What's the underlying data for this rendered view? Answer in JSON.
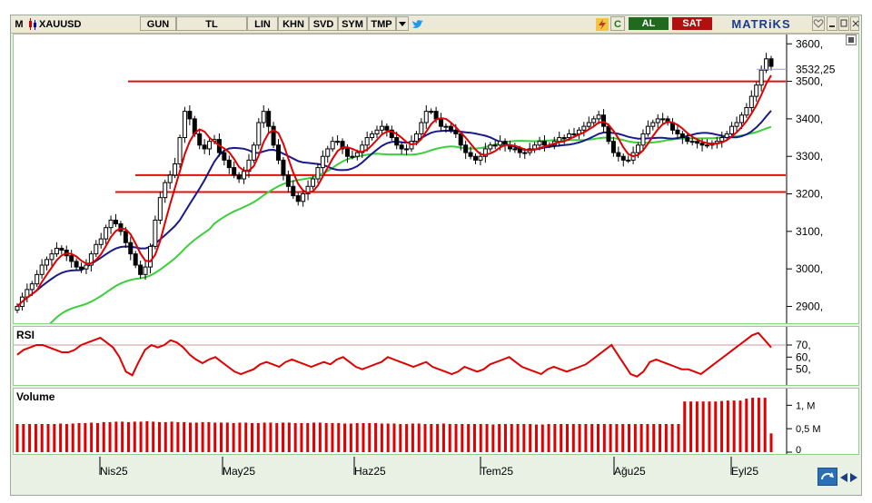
{
  "toolbar": {
    "menu_letter": "M",
    "symbol": "XAUUSD",
    "buttons": [
      "GUN",
      "TL",
      "LIN",
      "KHN",
      "SVD",
      "SYM",
      "TMP"
    ],
    "buy_label": "AL",
    "sell_label": "SAT",
    "brand": "MATRiKS",
    "c_label": "C"
  },
  "colors": {
    "candle": "#000000",
    "price_ma": "#e00000",
    "mid_ma": "#1a1a8c",
    "long_ma": "#3ccf3c",
    "level_line": "#e01010",
    "rsi_line": "#e00000",
    "volume_bar": "#e00000",
    "buy_bg": "#1e6b1e",
    "sell_bg": "#b01010"
  },
  "price_axis": {
    "ticks": [
      "3600,",
      "3500,",
      "3400,",
      "3300,",
      "3200,",
      "3100,",
      "3000,",
      "2900,"
    ],
    "last_price": "3532,25"
  },
  "rsi_panel": {
    "label": "RSI",
    "ticks": [
      "70,",
      "60,",
      "50,"
    ]
  },
  "volume_panel": {
    "label": "Volume",
    "ticks": [
      "1, M",
      "0,5 M",
      "0"
    ]
  },
  "time_axis": {
    "labels": [
      "Nis25",
      "May25",
      "Haz25",
      "Tem25",
      "Ağu25",
      "Eyl25"
    ]
  },
  "chart_data": {
    "type": "candlestick",
    "symbol": "XAUUSD",
    "period": "GUN",
    "ylim": [
      2860,
      3620
    ],
    "horizontal_levels": [
      3500,
      3250,
      3205
    ],
    "last_price": 3532.25,
    "closes": [
      2900,
      2925,
      2945,
      2960,
      2985,
      3010,
      3025,
      3040,
      3055,
      3050,
      3035,
      3020,
      3005,
      3000,
      3010,
      3040,
      3065,
      3080,
      3110,
      3130,
      3120,
      3100,
      3070,
      3040,
      3010,
      2985,
      3005,
      3060,
      3130,
      3190,
      3230,
      3250,
      3280,
      3350,
      3420,
      3400,
      3360,
      3330,
      3320,
      3340,
      3345,
      3310,
      3290,
      3270,
      3250,
      3240,
      3260,
      3290,
      3330,
      3390,
      3420,
      3380,
      3330,
      3290,
      3250,
      3220,
      3195,
      3180,
      3200,
      3220,
      3240,
      3270,
      3300,
      3320,
      3340,
      3340,
      3320,
      3300,
      3300,
      3310,
      3330,
      3350,
      3360,
      3370,
      3380,
      3370,
      3350,
      3330,
      3320,
      3320,
      3340,
      3360,
      3390,
      3420,
      3420,
      3400,
      3380,
      3380,
      3370,
      3360,
      3330,
      3310,
      3300,
      3290,
      3300,
      3320,
      3330,
      3330,
      3340,
      3330,
      3320,
      3320,
      3310,
      3310,
      3320,
      3330,
      3340,
      3330,
      3330,
      3340,
      3350,
      3350,
      3360,
      3360,
      3370,
      3380,
      3390,
      3400,
      3410,
      3380,
      3340,
      3310,
      3300,
      3290,
      3290,
      3310,
      3330,
      3360,
      3380,
      3390,
      3400,
      3400,
      3390,
      3370,
      3360,
      3350,
      3340,
      3340,
      3335,
      3330,
      3330,
      3335,
      3340,
      3350,
      3360,
      3380,
      3390,
      3410,
      3430,
      3460,
      3490,
      3530,
      3560,
      3540
    ],
    "rsi": [
      62,
      66,
      68,
      70,
      70,
      68,
      66,
      64,
      64,
      66,
      70,
      72,
      74,
      76,
      72,
      68,
      60,
      48,
      45,
      56,
      66,
      70,
      68,
      70,
      74,
      72,
      68,
      62,
      58,
      55,
      58,
      60,
      56,
      52,
      48,
      46,
      48,
      50,
      54,
      56,
      54,
      52,
      56,
      58,
      56,
      54,
      52,
      54,
      56,
      54,
      58,
      60,
      56,
      52,
      50,
      52,
      54,
      56,
      60,
      58,
      56,
      54,
      52,
      54,
      56,
      52,
      50,
      48,
      46,
      48,
      52,
      50,
      48,
      50,
      54,
      56,
      58,
      60,
      56,
      52,
      50,
      48,
      46,
      50,
      52,
      50,
      48,
      50,
      52,
      54,
      58,
      62,
      66,
      70,
      62,
      54,
      46,
      44,
      48,
      56,
      58,
      56,
      54,
      52,
      50,
      50,
      48,
      46,
      50,
      54,
      58,
      62,
      66,
      70,
      74,
      78,
      80,
      74,
      68
    ],
    "volume": [
      0.6,
      0.6,
      0.6,
      0.6,
      0.6,
      0.6,
      0.6,
      0.61,
      0.6,
      0.61,
      0.62,
      0.62,
      0.63,
      0.62,
      0.64,
      0.64,
      0.65,
      0.65,
      0.64,
      0.65,
      0.65,
      0.66,
      0.65,
      0.64,
      0.64,
      0.65,
      0.64,
      0.64,
      0.63,
      0.63,
      0.64,
      0.64,
      0.63,
      0.63,
      0.63,
      0.62,
      0.63,
      0.63,
      0.62,
      0.62,
      0.63,
      0.63,
      0.62,
      0.63,
      0.63,
      0.62,
      0.62,
      0.62,
      0.63,
      0.63,
      0.62,
      0.62,
      0.62,
      0.61,
      0.61,
      0.62,
      0.62,
      0.62,
      0.62,
      0.61,
      0.61,
      0.61,
      0.6,
      0.6,
      0.61,
      0.61,
      0.6,
      0.6,
      0.6,
      0.61,
      0.6,
      0.6,
      0.6,
      0.6,
      0.6,
      0.6,
      0.6,
      0.59,
      0.6,
      0.6,
      0.6,
      0.6,
      0.6,
      0.6,
      0.59,
      0.59,
      0.6,
      0.6,
      0.6,
      0.6,
      0.6,
      0.6,
      0.6,
      0.6,
      0.6,
      0.6,
      0.6,
      0.6,
      0.6,
      0.6,
      0.6,
      0.6,
      0.6,
      0.6,
      0.6,
      0.6,
      0.6,
      0.6,
      1.08,
      1.08,
      1.08,
      1.08,
      1.08,
      1.08,
      1.09,
      1.1,
      1.1,
      1.1,
      1.14,
      1.16,
      1.16,
      1.16,
      0.4
    ]
  }
}
